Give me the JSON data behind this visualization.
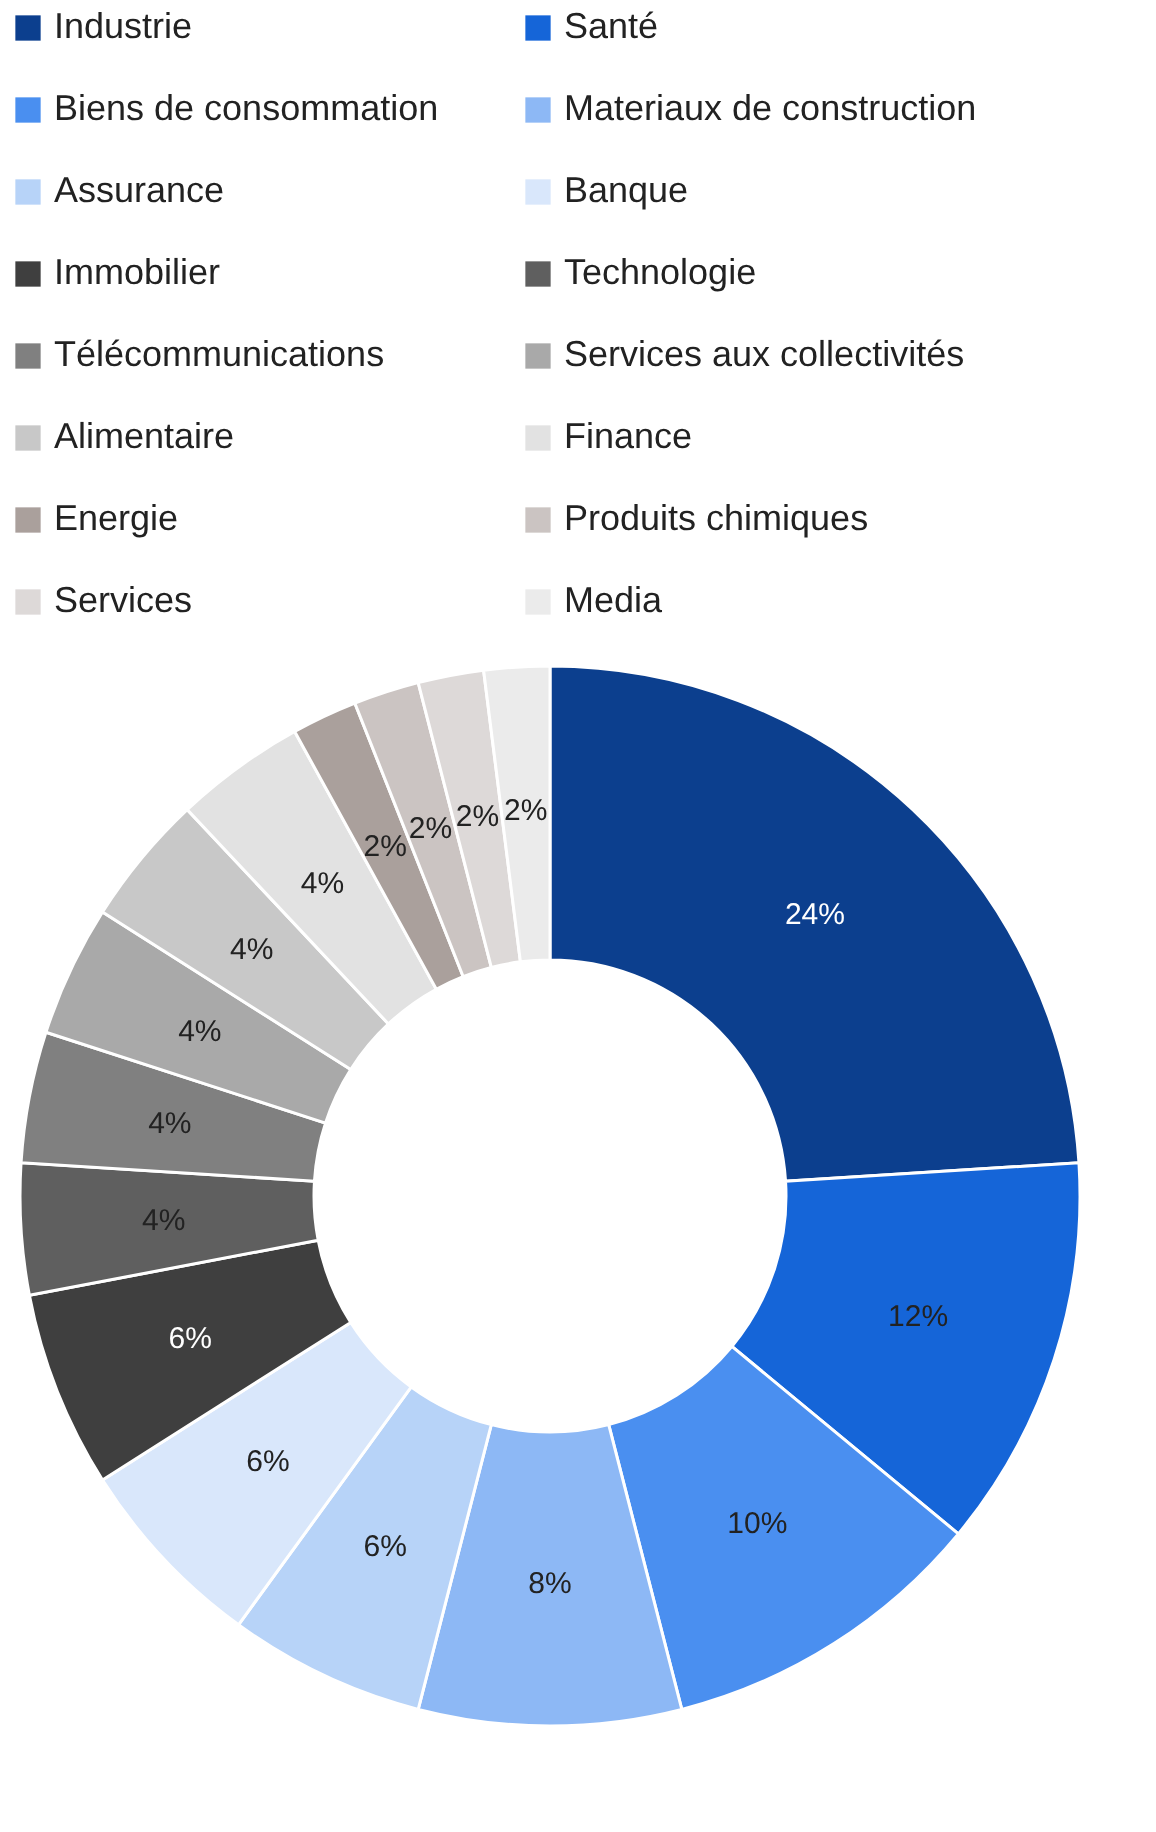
{
  "chart_data": {
    "type": "donut",
    "categories": [
      "Industrie",
      "Santé",
      "Biens de consommation",
      "Materiaux de construction",
      "Assurance",
      "Banque",
      "Immobilier",
      "Technologie",
      "Télécommunications",
      "Services aux collectivités",
      "Alimentaire",
      "Finance",
      "Energie",
      "Produits chimiques",
      "Services",
      "Media"
    ],
    "values": [
      24,
      12,
      10,
      8,
      6,
      6,
      6,
      4,
      4,
      4,
      4,
      4,
      2,
      2,
      2,
      2
    ],
    "value_labels": [
      "24%",
      "12%",
      "10%",
      "8%",
      "6%",
      "6%",
      "6%",
      "4%",
      "4%",
      "4%",
      "4%",
      "4%",
      "2%",
      "2%",
      "2%",
      "2%"
    ],
    "colors": [
      "#0c3f8e",
      "#1565d8",
      "#4a8ff0",
      "#8db8f5",
      "#b7d3f8",
      "#d9e7fb",
      "#3f3f3f",
      "#5f5f5f",
      "#808080",
      "#a9a9a9",
      "#c8c8c8",
      "#e2e2e2",
      "#aaa09c",
      "#cbc4c2",
      "#ddd9d8",
      "#ebebeb"
    ],
    "legend": "top"
  }
}
